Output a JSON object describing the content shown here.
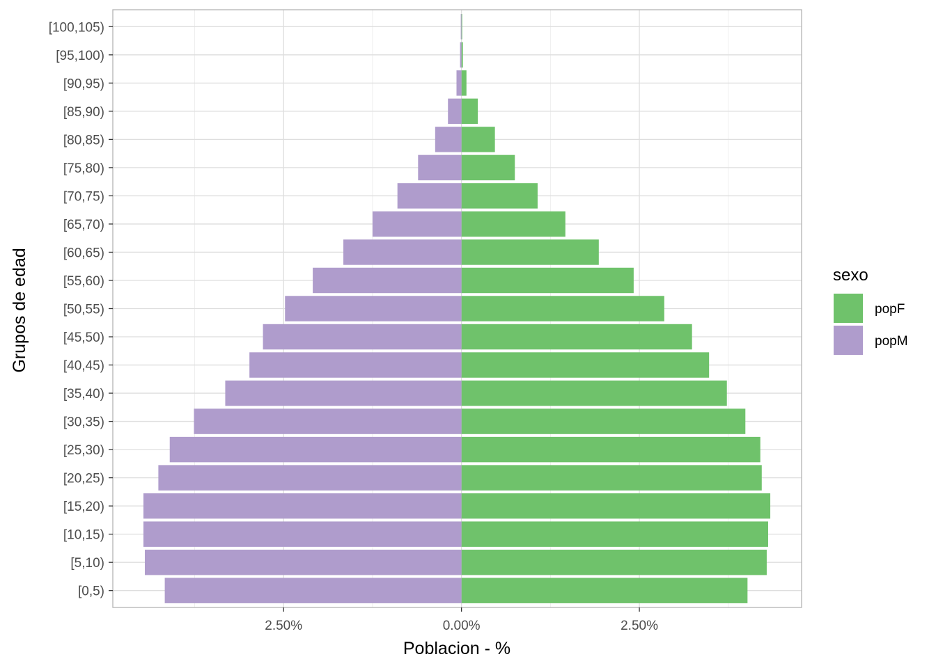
{
  "chart_data": {
    "type": "bar",
    "orientation": "horizontal",
    "title": "",
    "xlabel": "Poblacion - %",
    "ylabel": "Grupos de edad",
    "x_tick_labels": [
      "2.50%",
      "0.00%",
      "2.50%"
    ],
    "x_ticks": [
      -2.5,
      0,
      2.5
    ],
    "xlim": [
      -4.9,
      4.78
    ],
    "grid": true,
    "legend": {
      "title": "sexo",
      "position": "right"
    },
    "categories": [
      "[0,5)",
      "[5,10)",
      "[10,15)",
      "[15,20)",
      "[20,25)",
      "[25,30)",
      "[30,35)",
      "[35,40)",
      "[40,45)",
      "[45,50)",
      "[50,55)",
      "[55,60)",
      "[60,65)",
      "[65,70)",
      "[70,75)",
      "[75,80)",
      "[80,85)",
      "[85,90)",
      "[90,95)",
      "[95,100)",
      "[100,105)"
    ],
    "series": [
      {
        "name": "popF",
        "color": "#6fc26b",
        "side": "right",
        "values": [
          4.02,
          4.29,
          4.31,
          4.34,
          4.22,
          4.2,
          3.99,
          3.73,
          3.48,
          3.24,
          2.85,
          2.42,
          1.93,
          1.46,
          1.07,
          0.75,
          0.47,
          0.23,
          0.07,
          0.02,
          0.01
        ]
      },
      {
        "name": "popM",
        "color": "#af9ccc",
        "side": "left",
        "values": [
          4.17,
          4.45,
          4.47,
          4.47,
          4.26,
          4.1,
          3.76,
          3.32,
          2.98,
          2.79,
          2.48,
          2.09,
          1.66,
          1.25,
          0.9,
          0.61,
          0.37,
          0.19,
          0.07,
          0.02,
          0.01
        ]
      }
    ]
  }
}
